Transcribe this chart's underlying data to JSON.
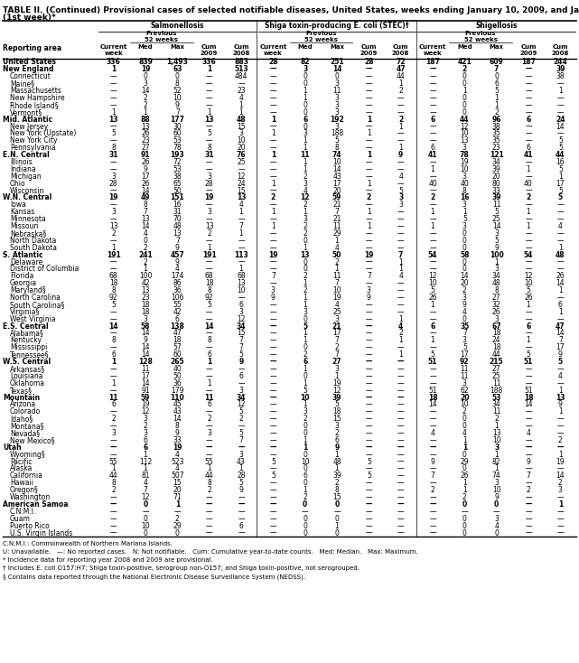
{
  "title_line1": "TABLE II. (Continued) Provisional cases of selected notifiable diseases, United States, weeks ending January 10, 2009, and January 5, 2008",
  "title_line2": "(1st week)*",
  "col_groups": [
    "Salmonellosis",
    "Shiga toxin-producing E. coli (STEC)†",
    "Shigellosis"
  ],
  "footnotes": [
    "C.N.M.I.: Commonwealth of Northern Mariana Islands.",
    "U: Unavailable.   —: No reported cases.   N: Not notifiable.   Cum: Cumulative year-to-date counts.   Med: Median.   Max: Maximum.",
    "* Incidence data for reporting year 2008 and 2009 are provisional.",
    "† Includes E. coli O157:H7; Shiga toxin-positive, serogroup non-O157; and Shiga toxin-positive, not serogrouped.",
    "§ Contains data reported through the National Electronic Disease Surveillance System (NEDSS)."
  ],
  "rows": [
    [
      "United States",
      "336",
      "839",
      "1,493",
      "336",
      "883",
      "28",
      "82",
      "251",
      "28",
      "72",
      "187",
      "421",
      "609",
      "187",
      "244"
    ],
    [
      "New England",
      "1",
      "19",
      "63",
      "1",
      "513",
      "—",
      "3",
      "14",
      "—",
      "47",
      "—",
      "2",
      "7",
      "—",
      "39"
    ],
    [
      "Connecticut",
      "—",
      "0",
      "0",
      "—",
      "484",
      "—",
      "0",
      "0",
      "—",
      "44",
      "—",
      "0",
      "0",
      "—",
      "38"
    ],
    [
      "Maine§",
      "—",
      "3",
      "8",
      "—",
      "—",
      "—",
      "0",
      "3",
      "—",
      "1",
      "—",
      "0",
      "6",
      "—",
      "—"
    ],
    [
      "Massachusetts",
      "—",
      "14",
      "52",
      "—",
      "23",
      "—",
      "1",
      "11",
      "—",
      "2",
      "—",
      "1",
      "5",
      "—",
      "1"
    ],
    [
      "New Hampshire",
      "—",
      "2",
      "10",
      "—",
      "4",
      "—",
      "1",
      "3",
      "—",
      "—",
      "—",
      "0",
      "1",
      "—",
      "—"
    ],
    [
      "Rhode Island§",
      "—",
      "2",
      "9",
      "—",
      "1",
      "—",
      "0",
      "3",
      "—",
      "—",
      "—",
      "0",
      "1",
      "—",
      "—"
    ],
    [
      "Vermont§",
      "1",
      "1",
      "7",
      "1",
      "1",
      "—",
      "0",
      "3",
      "—",
      "—",
      "—",
      "0",
      "2",
      "—",
      "—"
    ],
    [
      "Mid. Atlantic",
      "13",
      "88",
      "177",
      "13",
      "48",
      "1",
      "6",
      "192",
      "1",
      "2",
      "6",
      "44",
      "96",
      "6",
      "24"
    ],
    [
      "New Jersey",
      "—",
      "13",
      "30",
      "—",
      "15",
      "—",
      "0",
      "3",
      "—",
      "1",
      "—",
      "12",
      "38",
      "—",
      "14"
    ],
    [
      "New York (Upstate)",
      "5",
      "26",
      "60",
      "5",
      "3",
      "1",
      "3",
      "188",
      "1",
      "—",
      "—",
      "10",
      "35",
      "—",
      "—"
    ],
    [
      "New York City",
      "—",
      "23",
      "53",
      "—",
      "10",
      "—",
      "1",
      "5",
      "—",
      "—",
      "—",
      "13",
      "35",
      "—",
      "5"
    ],
    [
      "Pennsylvania",
      "8",
      "27",
      "78",
      "8",
      "20",
      "—",
      "1",
      "8",
      "—",
      "1",
      "6",
      "3",
      "23",
      "6",
      "5"
    ],
    [
      "E.N. Central",
      "31",
      "91",
      "193",
      "31",
      "76",
      "1",
      "11",
      "74",
      "1",
      "9",
      "41",
      "78",
      "121",
      "41",
      "44"
    ],
    [
      "Illinois",
      "—",
      "26",
      "72",
      "—",
      "25",
      "—",
      "1",
      "10",
      "—",
      "—",
      "—",
      "19",
      "34",
      "—",
      "16"
    ],
    [
      "Indiana",
      "—",
      "9",
      "53",
      "—",
      "—",
      "—",
      "1",
      "14",
      "—",
      "—",
      "1",
      "10",
      "39",
      "1",
      "5"
    ],
    [
      "Michigan",
      "3",
      "17",
      "38",
      "3",
      "12",
      "—",
      "2",
      "43",
      "—",
      "4",
      "—",
      "3",
      "20",
      "—",
      "1"
    ],
    [
      "Ohio",
      "28",
      "26",
      "65",
      "28",
      "24",
      "1",
      "3",
      "17",
      "1",
      "—",
      "40",
      "40",
      "80",
      "40",
      "17"
    ],
    [
      "Wisconsin",
      "—",
      "14",
      "50",
      "—",
      "15",
      "—",
      "4",
      "20",
      "—",
      "5",
      "—",
      "8",
      "33",
      "—",
      "5"
    ],
    [
      "W.N. Central",
      "19",
      "49",
      "151",
      "19",
      "13",
      "2",
      "12",
      "59",
      "2",
      "3",
      "2",
      "16",
      "39",
      "2",
      "5"
    ],
    [
      "Iowa",
      "—",
      "8",
      "16",
      "—",
      "4",
      "—",
      "2",
      "21",
      "—",
      "3",
      "—",
      "3",
      "11",
      "—",
      "—"
    ],
    [
      "Kansas",
      "3",
      "7",
      "31",
      "3",
      "1",
      "1",
      "1",
      "7",
      "1",
      "—",
      "1",
      "1",
      "5",
      "1",
      "—"
    ],
    [
      "Minnesota",
      "—",
      "13",
      "70",
      "—",
      "—",
      "—",
      "3",
      "21",
      "—",
      "—",
      "—",
      "5",
      "25",
      "—",
      "—"
    ],
    [
      "Missouri",
      "13",
      "14",
      "48",
      "13",
      "7",
      "1",
      "2",
      "11",
      "1",
      "—",
      "1",
      "3",
      "14",
      "1",
      "4"
    ],
    [
      "Nebraska§",
      "2",
      "4",
      "13",
      "2",
      "1",
      "—",
      "2",
      "29",
      "—",
      "—",
      "—",
      "0",
      "3",
      "—",
      "—"
    ],
    [
      "North Dakota",
      "—",
      "0",
      "7",
      "—",
      "—",
      "—",
      "0",
      "1",
      "—",
      "—",
      "—",
      "0",
      "5",
      "—",
      "—"
    ],
    [
      "South Dakota",
      "1",
      "2",
      "9",
      "1",
      "—",
      "—",
      "1",
      "4",
      "—",
      "—",
      "—",
      "0",
      "9",
      "—",
      "1"
    ],
    [
      "S. Atlantic",
      "191",
      "241",
      "457",
      "191",
      "113",
      "19",
      "13",
      "50",
      "19",
      "7",
      "54",
      "58",
      "100",
      "54",
      "48"
    ],
    [
      "Delaware",
      "—",
      "2",
      "9",
      "—",
      "—",
      "—",
      "0",
      "2",
      "—",
      "1",
      "—",
      "0",
      "1",
      "—",
      "—"
    ],
    [
      "District of Columbia",
      "—",
      "1",
      "4",
      "—",
      "1",
      "—",
      "0",
      "1",
      "—",
      "1",
      "—",
      "0",
      "3",
      "—",
      "—"
    ],
    [
      "Florida",
      "68",
      "100",
      "174",
      "68",
      "68",
      "7",
      "2",
      "11",
      "7",
      "4",
      "12",
      "14",
      "34",
      "12",
      "26"
    ],
    [
      "Georgia",
      "18",
      "42",
      "86",
      "18",
      "13",
      "—",
      "1",
      "7",
      "—",
      "—",
      "10",
      "20",
      "48",
      "10",
      "14"
    ],
    [
      "Maryland§",
      "8",
      "13",
      "36",
      "8",
      "10",
      "3",
      "2",
      "10",
      "3",
      "—",
      "5",
      "2",
      "8",
      "5",
      "1"
    ],
    [
      "North Carolina",
      "92",
      "23",
      "106",
      "92",
      "—",
      "9",
      "1",
      "19",
      "9",
      "—",
      "26",
      "3",
      "27",
      "26",
      "—"
    ],
    [
      "South Carolina§",
      "5",
      "18",
      "55",
      "5",
      "6",
      "—",
      "1",
      "4",
      "—",
      "—",
      "1",
      "9",
      "32",
      "1",
      "6"
    ],
    [
      "Virginia§",
      "—",
      "18",
      "42",
      "—",
      "3",
      "—",
      "3",
      "25",
      "—",
      "—",
      "—",
      "4",
      "26",
      "—",
      "1"
    ],
    [
      "West Virginia",
      "—",
      "3",
      "6",
      "—",
      "12",
      "—",
      "0",
      "3",
      "—",
      "1",
      "—",
      "0",
      "3",
      "—",
      "—"
    ],
    [
      "E.S. Central",
      "14",
      "58",
      "138",
      "14",
      "34",
      "—",
      "5",
      "21",
      "—",
      "4",
      "6",
      "35",
      "67",
      "6",
      "47"
    ],
    [
      "Alabama§",
      "—",
      "14",
      "47",
      "—",
      "15",
      "—",
      "1",
      "17",
      "—",
      "2",
      "—",
      "7",
      "18",
      "—",
      "14"
    ],
    [
      "Kentucky",
      "8",
      "9",
      "18",
      "8",
      "7",
      "—",
      "1",
      "7",
      "—",
      "1",
      "1",
      "3",
      "24",
      "1",
      "7"
    ],
    [
      "Mississippi",
      "—",
      "14",
      "57",
      "—",
      "7",
      "—",
      "0",
      "2",
      "—",
      "—",
      "—",
      "5",
      "18",
      "—",
      "17"
    ],
    [
      "Tennessee§",
      "6",
      "14",
      "60",
      "6",
      "5",
      "—",
      "2",
      "7",
      "—",
      "1",
      "5",
      "17",
      "44",
      "5",
      "9"
    ],
    [
      "W.S. Central",
      "1",
      "128",
      "265",
      "1",
      "9",
      "—",
      "6",
      "27",
      "—",
      "—",
      "51",
      "92",
      "215",
      "51",
      "5"
    ],
    [
      "Arkansas§",
      "—",
      "11",
      "40",
      "—",
      "—",
      "—",
      "1",
      "3",
      "—",
      "—",
      "—",
      "11",
      "27",
      "—",
      "—"
    ],
    [
      "Louisiana",
      "—",
      "17",
      "50",
      "—",
      "6",
      "—",
      "0",
      "1",
      "—",
      "—",
      "—",
      "11",
      "25",
      "—",
      "4"
    ],
    [
      "Oklahoma",
      "1",
      "14",
      "36",
      "1",
      "—",
      "—",
      "1",
      "19",
      "—",
      "—",
      "—",
      "3",
      "11",
      "—",
      "—"
    ],
    [
      "Texas§",
      "—",
      "91",
      "179",
      "—",
      "3",
      "—",
      "5",
      "12",
      "—",
      "—",
      "51",
      "62",
      "188",
      "51",
      "1"
    ],
    [
      "Mountain",
      "11",
      "59",
      "110",
      "11",
      "34",
      "—",
      "10",
      "39",
      "—",
      "—",
      "18",
      "20",
      "53",
      "18",
      "13"
    ],
    [
      "Arizona",
      "6",
      "19",
      "45",
      "6",
      "12",
      "—",
      "1",
      "5",
      "—",
      "—",
      "14",
      "10",
      "34",
      "14",
      "9"
    ],
    [
      "Colorado",
      "—",
      "12",
      "43",
      "—",
      "5",
      "—",
      "3",
      "18",
      "—",
      "—",
      "—",
      "2",
      "11",
      "—",
      "1"
    ],
    [
      "Idaho§",
      "2",
      "3",
      "14",
      "2",
      "2",
      "—",
      "2",
      "15",
      "—",
      "—",
      "—",
      "0",
      "2",
      "—",
      "—"
    ],
    [
      "Montana§",
      "—",
      "2",
      "8",
      "—",
      "—",
      "—",
      "0",
      "3",
      "—",
      "—",
      "—",
      "0",
      "1",
      "—",
      "—"
    ],
    [
      "Nevada§",
      "3",
      "3",
      "9",
      "3",
      "5",
      "—",
      "0",
      "2",
      "—",
      "—",
      "4",
      "4",
      "13",
      "4",
      "—"
    ],
    [
      "New Mexico§",
      "—",
      "6",
      "33",
      "—",
      "7",
      "—",
      "1",
      "6",
      "—",
      "—",
      "—",
      "1",
      "10",
      "—",
      "2"
    ],
    [
      "Utah",
      "—",
      "6",
      "19",
      "—",
      "—",
      "—",
      "1",
      "9",
      "—",
      "—",
      "—",
      "1",
      "3",
      "—",
      "—"
    ],
    [
      "Wyoming§",
      "—",
      "1",
      "4",
      "—",
      "3",
      "—",
      "0",
      "1",
      "—",
      "—",
      "—",
      "0",
      "1",
      "—",
      "1"
    ],
    [
      "Pacific",
      "55",
      "112",
      "523",
      "55",
      "43",
      "5",
      "10",
      "48",
      "5",
      "—",
      "9",
      "29",
      "82",
      "9",
      "19"
    ],
    [
      "Alaska",
      "1",
      "1",
      "4",
      "1",
      "1",
      "—",
      "0",
      "1",
      "—",
      "—",
      "—",
      "0",
      "1",
      "—",
      "—"
    ],
    [
      "California",
      "44",
      "81",
      "507",
      "44",
      "28",
      "5",
      "6",
      "39",
      "5",
      "—",
      "7",
      "26",
      "74",
      "7",
      "14"
    ],
    [
      "Hawaii",
      "8",
      "4",
      "15",
      "8",
      "5",
      "—",
      "0",
      "2",
      "—",
      "—",
      "—",
      "1",
      "3",
      "—",
      "2"
    ],
    [
      "Oregon§",
      "2",
      "7",
      "20",
      "2",
      "9",
      "—",
      "1",
      "8",
      "—",
      "—",
      "2",
      "1",
      "10",
      "2",
      "3"
    ],
    [
      "Washington",
      "—",
      "12",
      "71",
      "—",
      "—",
      "—",
      "2",
      "15",
      "—",
      "—",
      "—",
      "2",
      "9",
      "—",
      "—"
    ],
    [
      "American Samoa",
      "—",
      "0",
      "1",
      "—",
      "—",
      "—",
      "0",
      "0",
      "—",
      "—",
      "—",
      "0",
      "0",
      "—",
      "1"
    ],
    [
      "C.N.M.I.",
      "—",
      "—",
      "—",
      "—",
      "—",
      "—",
      "—",
      "—",
      "—",
      "—",
      "—",
      "—",
      "—",
      "—",
      "—"
    ],
    [
      "Guam",
      "—",
      "0",
      "2",
      "—",
      "—",
      "—",
      "0",
      "0",
      "—",
      "—",
      "—",
      "0",
      "3",
      "—",
      "—"
    ],
    [
      "Puerto Rico",
      "—",
      "10",
      "29",
      "—",
      "6",
      "—",
      "0",
      "1",
      "—",
      "—",
      "—",
      "0",
      "4",
      "—",
      "—"
    ],
    [
      "U.S. Virgin Islands",
      "—",
      "0",
      "0",
      "—",
      "—",
      "—",
      "0",
      "0",
      "—",
      "—",
      "—",
      "0",
      "0",
      "—",
      "—"
    ]
  ],
  "bold_rows": [
    0,
    1,
    8,
    13,
    19,
    27,
    37,
    42,
    47,
    54,
    62
  ],
  "bg_color": "#ffffff"
}
